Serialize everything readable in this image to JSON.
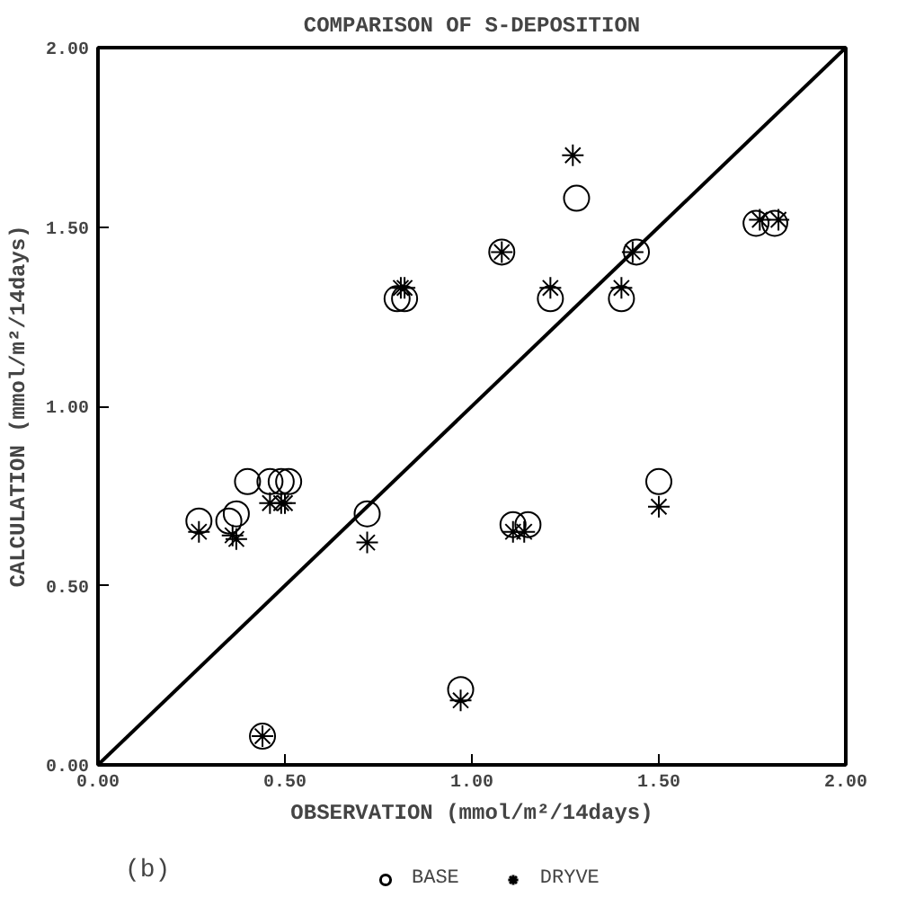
{
  "chart_data": {
    "type": "scatter",
    "title": "COMPARISON OF S-DEPOSITION",
    "xlabel": "OBSERVATION (mmol/m²/14days)",
    "ylabel": "CALCULATION (mmol/m²/14days)",
    "annotations": [
      "(b)"
    ],
    "xlim": [
      0,
      2
    ],
    "ylim": [
      0,
      2
    ],
    "xticks": [
      {
        "value": 0,
        "label": "0.00"
      },
      {
        "value": 0.5,
        "label": "0.50"
      },
      {
        "value": 1,
        "label": "1.00"
      },
      {
        "value": 1.5,
        "label": "1.50"
      },
      {
        "value": 2,
        "label": "2.00"
      }
    ],
    "yticks": [
      {
        "value": 0,
        "label": "0.00"
      },
      {
        "value": 0.5,
        "label": "0.50"
      },
      {
        "value": 1,
        "label": "1.00"
      },
      {
        "value": 1.5,
        "label": "1.50"
      },
      {
        "value": 2,
        "label": "2.00"
      }
    ],
    "grid": false,
    "legend": "bottom",
    "series": [
      {
        "name": "BASE",
        "color": "#000000",
        "marker": "circle",
        "x": [
          0.27,
          0.35,
          0.37,
          0.4,
          0.46,
          0.49,
          0.51,
          0.72,
          0.44,
          0.97,
          0.8,
          0.82,
          1.08,
          1.21,
          1.11,
          1.15,
          1.28,
          1.4,
          1.44,
          1.5,
          1.76,
          1.81
        ],
        "values": [
          0.68,
          0.68,
          0.7,
          0.79,
          0.79,
          0.79,
          0.79,
          0.7,
          0.08,
          0.21,
          1.3,
          1.3,
          1.43,
          1.3,
          0.67,
          0.67,
          1.58,
          1.3,
          1.43,
          0.79,
          1.51,
          1.51
        ]
      },
      {
        "name": "DRYVE",
        "color": "#000000",
        "marker": "cross",
        "x": [
          0.27,
          0.36,
          0.37,
          0.46,
          0.49,
          0.5,
          0.72,
          0.44,
          0.97,
          0.81,
          0.82,
          1.08,
          1.21,
          1.11,
          1.14,
          1.27,
          1.4,
          1.43,
          1.5,
          1.77,
          1.82
        ],
        "values": [
          0.65,
          0.64,
          0.63,
          0.73,
          0.73,
          0.73,
          0.62,
          0.08,
          0.18,
          1.33,
          1.33,
          1.43,
          1.33,
          0.65,
          0.65,
          1.7,
          1.33,
          1.43,
          0.72,
          1.52,
          1.52
        ]
      },
      {
        "type": "line",
        "color": "#000000",
        "line_style": "solid",
        "x": [
          0,
          2
        ],
        "values": [
          0,
          2
        ]
      }
    ]
  }
}
